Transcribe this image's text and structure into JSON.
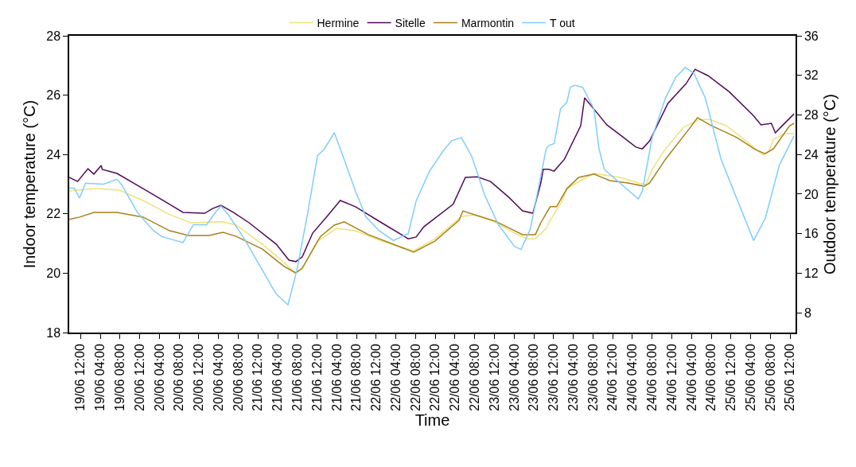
{
  "chart_data": {
    "type": "line",
    "xlabel": "Time",
    "ylabel": "Indoor temperature (°C)",
    "y2label": "Outdoor temperature (°C)",
    "xlim": [
      "--06-19T09:42",
      "--06-25T13:06"
    ],
    "ylim": [
      18,
      28
    ],
    "yticks": [
      18,
      20,
      22,
      24,
      26,
      28
    ],
    "y2lim": [
      6,
      36
    ],
    "y2ticks": [
      8,
      12,
      16,
      20,
      24,
      28,
      32,
      36
    ],
    "xticks": [
      {
        "value": "--06-19T12:00",
        "label": "19/06 12:00"
      },
      {
        "value": "--06-19T16:00",
        "label": "19/06 04:00"
      },
      {
        "value": "--06-19T20:00",
        "label": "19/06 08:00"
      },
      {
        "value": "--06-20T00:00",
        "label": "20/06 12:00"
      },
      {
        "value": "--06-20T04:00",
        "label": "20/06 04:00"
      },
      {
        "value": "--06-20T08:00",
        "label": "20/06 08:00"
      },
      {
        "value": "--06-20T12:00",
        "label": "20/06 12:00"
      },
      {
        "value": "--06-20T16:00",
        "label": "20/06 04:00"
      },
      {
        "value": "--06-20T20:00",
        "label": "20/06 08:00"
      },
      {
        "value": "--06-21T00:00",
        "label": "21/06 12:00"
      },
      {
        "value": "--06-21T04:00",
        "label": "21/06 04:00"
      },
      {
        "value": "--06-21T08:00",
        "label": "21/06 08:00"
      },
      {
        "value": "--06-21T12:00",
        "label": "21/06 12:00"
      },
      {
        "value": "--06-21T16:00",
        "label": "21/06 04:00"
      },
      {
        "value": "--06-21T20:00",
        "label": "21/06 08:00"
      },
      {
        "value": "--06-22T00:00",
        "label": "22/06 12:00"
      },
      {
        "value": "--06-22T04:00",
        "label": "22/06 04:00"
      },
      {
        "value": "--06-22T08:00",
        "label": "22/06 08:00"
      },
      {
        "value": "--06-22T12:00",
        "label": "22/06 12:00"
      },
      {
        "value": "--06-22T16:00",
        "label": "22/06 04:00"
      },
      {
        "value": "--06-22T20:00",
        "label": "22/06 08:00"
      },
      {
        "value": "--06-23T00:00",
        "label": "23/06 12:00"
      },
      {
        "value": "--06-23T04:00",
        "label": "23/06 04:00"
      },
      {
        "value": "--06-23T08:00",
        "label": "23/06 08:00"
      },
      {
        "value": "--06-23T12:00",
        "label": "23/06 12:00"
      },
      {
        "value": "--06-23T16:00",
        "label": "23/06 04:00"
      },
      {
        "value": "--06-23T20:00",
        "label": "23/06 08:00"
      },
      {
        "value": "--06-24T00:00",
        "label": "24/06 12:00"
      },
      {
        "value": "--06-24T04:00",
        "label": "24/06 04:00"
      },
      {
        "value": "--06-24T08:00",
        "label": "24/06 08:00"
      },
      {
        "value": "--06-24T12:00",
        "label": "24/06 12:00"
      },
      {
        "value": "--06-24T16:00",
        "label": "24/06 04:00"
      },
      {
        "value": "--06-24T20:00",
        "label": "24/06 08:00"
      },
      {
        "value": "--06-25T00:00",
        "label": "25/06 12:00"
      },
      {
        "value": "--06-25T04:00",
        "label": "25/06 04:00"
      },
      {
        "value": "--06-25T08:00",
        "label": "25/06 08:00"
      },
      {
        "value": "--06-25T12:00",
        "label": "25/06 12:00"
      }
    ],
    "grid": false,
    "legend": "top",
    "marker": "none",
    "line_style": "solid",
    "series": [
      {
        "name": "Hermine",
        "color": "#ede27a",
        "x": [
          "--06-19T09:42",
          "--06-19T15:06",
          "--06-19T19:54",
          "--06-20T00:42",
          "--06-20T06:06",
          "--06-20T10:24",
          "--06-20T16:54",
          "--06-20T19:36",
          "--06-21T00:54",
          "--06-21T05:18",
          "--06-21T07:24",
          "--06-21T09:00",
          "--06-21T12:12",
          "--06-21T15:54",
          "--06-21T19:48",
          "--06-22T01:06",
          "--06-22T07:36",
          "--06-22T11:54",
          "--06-22T17:18",
          "--06-22T20:00",
          "--06-22T23:42",
          "--06-23T04:06",
          "--06-23T06:36",
          "--06-23T08:18",
          "--06-23T10:30",
          "--06-23T11:00",
          "--06-23T13:42",
          "--06-23T14:42",
          "--06-23T17:30",
          "--06-23T20:12",
          "--06-24T01:30",
          "--06-24T05:12",
          "--06-24T06:42",
          "--06-24T08:00",
          "--06-24T10:42",
          "--06-24T14:24",
          "--06-24T17:36",
          "--06-24T19:42",
          "--06-24T23:00",
          "--06-25T02:12",
          "--06-25T06:30",
          "--06-25T07:42",
          "--06-25T08:36",
          "--06-25T10:54",
          "--06-25T12:48"
        ],
        "values": [
          22.77,
          22.85,
          22.8,
          22.45,
          21.97,
          21.7,
          21.73,
          21.62,
          20.98,
          20.36,
          20.01,
          20.17,
          21.08,
          21.51,
          21.43,
          21.08,
          20.76,
          21.16,
          21.91,
          21.97,
          21.75,
          21.35,
          21.16,
          21.16,
          21.51,
          21.7,
          22.42,
          22.85,
          23.12,
          23.36,
          23.23,
          23.04,
          22.99,
          23.5,
          24.19,
          24.92,
          25.18,
          25.18,
          24.97,
          24.57,
          23.98,
          24.11,
          24.51,
          24.7,
          24.7
        ]
      },
      {
        "name": "Sitelle",
        "color": "#520a5a",
        "x": [
          "--06-19T09:42",
          "--06-19T11:24",
          "--06-19T13:30",
          "--06-19T14:42",
          "--06-19T16:12",
          "--06-19T16:24",
          "--06-19T19:24",
          "--06-20T00:42",
          "--06-20T06:06",
          "--06-20T08:48",
          "--06-20T13:12",
          "--06-20T14:48",
          "--06-20T16:30",
          "--06-20T19:00",
          "--06-20T22:12",
          "--06-21T03:42",
          "--06-21T06:18",
          "--06-21T07:42",
          "--06-21T09:00",
          "--06-21T11:06",
          "--06-21T14:18",
          "--06-21T16:42",
          "--06-21T19:48",
          "--06-22T01:06",
          "--06-22T06:30",
          "--06-22T08:06",
          "--06-22T09:42",
          "--06-22T15:36",
          "--06-22T18:06",
          "--06-22T20:30",
          "--06-22T23:12",
          "--06-23T02:54",
          "--06-23T05:42",
          "--06-23T07:48",
          "--06-23T09:24",
          "--06-23T09:54",
          "--06-23T11:00",
          "--06-23T12:06",
          "--06-23T14:12",
          "--06-23T17:30",
          "--06-23T18:18",
          "--06-23T20:12",
          "--06-23T22:48",
          "--06-24T02:00",
          "--06-24T04:42",
          "--06-24T06:00",
          "--06-24T07:30",
          "--06-24T11:12",
          "--06-24T14:54",
          "--06-24T16:42",
          "--06-24T19:18",
          "--06-24T23:36",
          "--06-25T04:30",
          "--06-25T06:06",
          "--06-25T08:12",
          "--06-25T09:00",
          "--06-25T10:06",
          "--06-25T12:48"
        ],
        "values": [
          23.23,
          23.09,
          23.52,
          23.34,
          23.63,
          23.5,
          23.36,
          22.85,
          22.32,
          22.05,
          22.02,
          22.18,
          22.29,
          22.05,
          21.7,
          20.98,
          20.44,
          20.39,
          20.55,
          21.35,
          21.97,
          22.45,
          22.24,
          21.7,
          21.16,
          21.22,
          21.57,
          22.32,
          23.23,
          23.25,
          23.09,
          22.56,
          22.1,
          22.02,
          23.04,
          23.5,
          23.5,
          23.44,
          23.84,
          24.97,
          25.91,
          25.53,
          25.0,
          24.6,
          24.25,
          24.19,
          24.46,
          25.72,
          26.39,
          26.87,
          26.66,
          26.12,
          25.32,
          25.0,
          25.05,
          24.73,
          24.92,
          25.37
        ]
      },
      {
        "name": "Marmontin",
        "color": "#a8801a",
        "x": [
          "--06-19T09:42",
          "--06-19T11:48",
          "--06-19T14:42",
          "--06-19T19:24",
          "--06-20T00:42",
          "--06-20T06:06",
          "--06-20T09:54",
          "--06-20T14:06",
          "--06-20T16:54",
          "--06-20T19:36",
          "--06-21T00:54",
          "--06-21T05:18",
          "--06-21T07:42",
          "--06-21T09:00",
          "--06-21T12:06",
          "--06-21T12:42",
          "--06-21T15:30",
          "--06-21T17:30",
          "--06-21T22:24",
          "--06-22T07:36",
          "--06-22T11:54",
          "--06-22T16:48",
          "--06-22T17:36",
          "--06-22T20:00",
          "--06-23T00:12",
          "--06-23T05:42",
          "--06-23T08:18",
          "--06-23T09:24",
          "--06-23T11:18",
          "--06-23T12:36",
          "--06-23T14:42",
          "--06-23T17:06",
          "--06-23T20:12",
          "--06-23T23:24",
          "--06-24T03:06",
          "--06-24T06:24",
          "--06-24T07:30",
          "--06-24T10:42",
          "--06-24T15:30",
          "--06-24T17:12",
          "--06-24T19:42",
          "--06-25T01:12",
          "--06-25T04:54",
          "--06-25T06:54",
          "--06-25T08:36",
          "--06-25T11:54",
          "--06-25T12:48"
        ],
        "values": [
          21.81,
          21.89,
          22.05,
          22.05,
          21.89,
          21.43,
          21.27,
          21.27,
          21.38,
          21.24,
          20.81,
          20.23,
          20.01,
          20.17,
          21.08,
          21.24,
          21.62,
          21.73,
          21.3,
          20.71,
          21.08,
          21.78,
          22.1,
          21.97,
          21.75,
          21.3,
          21.3,
          21.7,
          22.24,
          22.24,
          22.85,
          23.23,
          23.34,
          23.12,
          23.04,
          22.93,
          23.04,
          23.84,
          24.86,
          25.24,
          25.0,
          24.57,
          24.17,
          24.03,
          24.19,
          24.97,
          25.05
        ]
      },
      {
        "name": "T out",
        "color": "#80ccff",
        "axis": "y2",
        "x": [
          "--06-19T09:42",
          "--06-19T10:42",
          "--06-19T11:48",
          "--06-19T13:00",
          "--06-19T16:42",
          "--06-19T19:24",
          "--06-19T20:24",
          "--06-19T23:36",
          "--06-20T02:48",
          "--06-20T04:30",
          "--06-20T08:48",
          "--06-20T10:54",
          "--06-20T13:36",
          "--06-20T15:18",
          "--06-20T16:30",
          "--06-20T18:00",
          "--06-20T21:12",
          "--06-21T00:54",
          "--06-21T03:42",
          "--06-21T06:06",
          "--06-21T07:54",
          "--06-21T10:06",
          "--06-21T12:06",
          "--06-21T13:24",
          "--06-21T15:30",
          "--06-21T17:30",
          "--06-21T19:48",
          "--06-21T21:54",
          "--06-22T00:36",
          "--06-22T03:30",
          "--06-22T06:30",
          "--06-22T08:06",
          "--06-22T10:48",
          "--06-22T13:30",
          "--06-22T15:18",
          "--06-22T17:18",
          "--06-22T19:24",
          "--06-22T22:06",
          "--06-23T00:48",
          "--06-23T04:06",
          "--06-23T05:24",
          "--06-23T07:18",
          "--06-23T10:30",
          "--06-23T11:00",
          "--06-23T12:06",
          "--06-23T13:24",
          "--06-23T14:42",
          "--06-23T15:24",
          "--06-23T16:18",
          "--06-23T17:54",
          "--06-23T20:12",
          "--06-23T21:12",
          "--06-23T22:18",
          "--06-24T01:30",
          "--06-24T05:12",
          "--06-24T06:00",
          "--06-24T08:00",
          "--06-24T10:42",
          "--06-24T12:48",
          "--06-24T14:42",
          "--06-24T16:30",
          "--06-24T18:48",
          "--06-24T22:00",
          "--06-25T01:12",
          "--06-25T04:36",
          "--06-25T07:00",
          "--06-25T09:48",
          "--06-25T12:48"
        ],
        "values": [
          20.6,
          20.6,
          19.6,
          21.1,
          21.0,
          21.5,
          20.9,
          18.1,
          16.3,
          15.7,
          15.1,
          16.9,
          16.9,
          18.1,
          18.8,
          17.9,
          15.5,
          12.3,
          9.9,
          8.8,
          12.3,
          18.1,
          23.9,
          24.5,
          26.2,
          23.5,
          20.3,
          17.7,
          16.3,
          15.3,
          16.0,
          19.3,
          22.3,
          24.3,
          25.4,
          25.7,
          23.8,
          19.8,
          16.9,
          14.7,
          14.4,
          16.5,
          24.6,
          24.9,
          25.1,
          28.6,
          29.3,
          30.8,
          31.0,
          30.8,
          28.6,
          24.6,
          22.5,
          21.1,
          19.5,
          20.3,
          25.7,
          29.7,
          31.8,
          32.8,
          32.2,
          29.7,
          23.5,
          19.5,
          15.3,
          17.6,
          22.9,
          25.9
        ]
      }
    ]
  }
}
